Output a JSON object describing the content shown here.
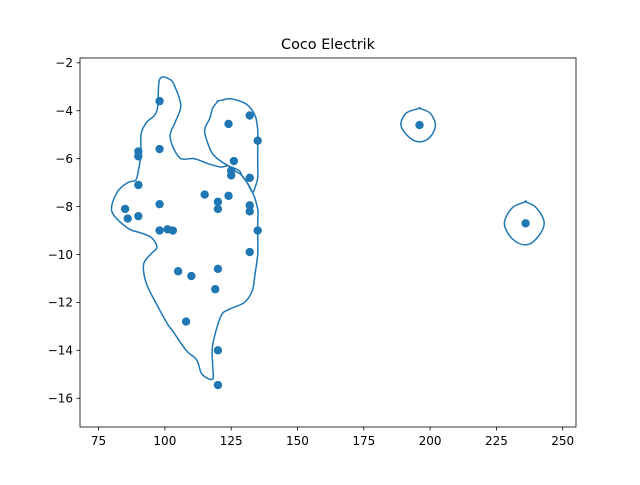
{
  "chart_data": {
    "type": "scatter",
    "title": "Coco Electrik",
    "xlabel": "",
    "ylabel": "",
    "xlim": [
      68,
      255
    ],
    "ylim": [
      -17.2,
      -1.8
    ],
    "xticks": [
      75,
      100,
      125,
      150,
      175,
      200,
      225,
      250
    ],
    "yticks": [
      -16,
      -14,
      -12,
      -10,
      -8,
      -6,
      -4,
      -2
    ],
    "grid": false,
    "legend": "none",
    "marker_color": "#1f77b4",
    "series": [
      {
        "type": "scatter",
        "x": [
          98,
          90,
          90,
          98,
          90,
          98,
          85,
          86,
          90,
          98,
          101,
          103,
          124,
          132,
          135,
          126,
          125,
          125,
          132,
          115,
          124,
          120,
          120,
          132,
          132,
          135,
          132,
          105,
          110,
          120,
          119,
          108,
          120,
          120,
          196,
          236
        ],
        "y": [
          -3.6,
          -5.7,
          -5.9,
          -5.6,
          -7.1,
          -7.9,
          -8.1,
          -8.5,
          -8.4,
          -9.0,
          -8.95,
          -9.0,
          -4.55,
          -4.2,
          -5.25,
          -6.1,
          -6.5,
          -6.7,
          -6.8,
          -7.5,
          -7.55,
          -7.8,
          -8.1,
          -7.95,
          -8.2,
          -9.0,
          -9.9,
          -10.7,
          -10.9,
          -10.6,
          -11.45,
          -12.8,
          -14.0,
          -15.45,
          -4.6,
          -8.7
        ]
      },
      {
        "type": "contour",
        "loops": [
          {
            "x": [
              98,
              102,
              104,
              106,
              104,
              102,
              103,
              106,
              111,
              116,
              121,
              124,
              126,
              129,
              133,
              135,
              135,
              135,
              135,
              134,
              133,
              130,
              124,
              121,
              118,
              118,
              118,
              114,
              112,
              108,
              103,
              101,
              97,
              93,
              92,
              95,
              97,
              95,
              91,
              86,
              80,
              82,
              86,
              89,
              90,
              91,
              91,
              93,
              97
            ],
            "y": [
              -2.7,
              -2.7,
              -3.05,
              -3.8,
              -4.45,
              -5.0,
              -5.5,
              -6.0,
              -6.0,
              -6.2,
              -6.35,
              -6.3,
              -6.5,
              -6.7,
              -7.4,
              -8.1,
              -8.6,
              -9.2,
              -10.0,
              -10.8,
              -11.5,
              -12.0,
              -12.3,
              -12.6,
              -13.8,
              -14.6,
              -15.2,
              -15.0,
              -14.4,
              -14.0,
              -13.2,
              -12.9,
              -12.1,
              -11.2,
              -10.4,
              -9.95,
              -9.7,
              -9.3,
              -9.1,
              -8.9,
              -8.2,
              -7.4,
              -7.0,
              -6.9,
              -6.5,
              -5.8,
              -5.0,
              -4.5,
              -4.0
            ]
          },
          {
            "x": [
              120,
              124,
              127,
              131,
              134,
              135,
              135,
              135,
              135,
              134,
              133,
              131,
              129,
              128,
              124,
              121,
              118,
              116,
              115,
              117,
              118,
              120
            ],
            "y": [
              -3.6,
              -3.5,
              -3.55,
              -3.75,
              -4.2,
              -4.8,
              -5.5,
              -6.2,
              -6.8,
              -7.2,
              -7.4,
              -7.0,
              -6.7,
              -6.5,
              -6.3,
              -6.1,
              -5.8,
              -5.3,
              -4.8,
              -4.3,
              -3.9,
              -3.6
            ]
          },
          {
            "x": [
              196,
              200,
              202,
              200,
              196,
              192,
              189,
              191,
              196
            ],
            "y": [
              -3.9,
              -4.1,
              -4.6,
              -5.1,
              -5.3,
              -5.1,
              -4.6,
              -4.1,
              -3.9
            ]
          },
          {
            "x": [
              236,
              240,
              243,
              240,
              236,
              231,
              228,
              231,
              236
            ],
            "y": [
              -7.8,
              -8.05,
              -8.7,
              -9.35,
              -9.6,
              -9.35,
              -8.7,
              -8.05,
              -7.8
            ]
          }
        ]
      }
    ]
  }
}
